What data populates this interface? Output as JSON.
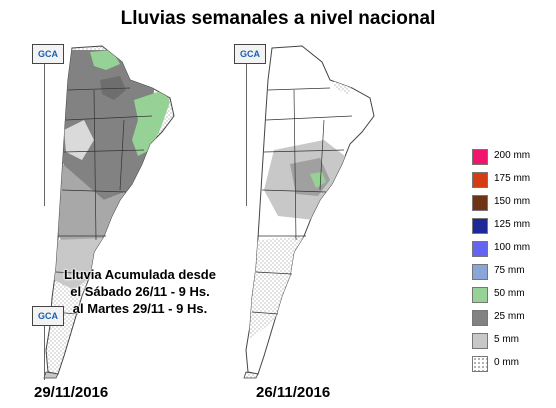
{
  "title": "Lluvias semanales a nivel nacional",
  "logo_text": "GCA",
  "caption": {
    "line1": "Lluvia Acumulada desde",
    "line2": "el Sábado 26/11 - 9 Hs.",
    "line3": "al Martes 29/11 - 9 Hs."
  },
  "maps": [
    {
      "date": "29/11/2016"
    },
    {
      "date": "26/11/2016"
    }
  ],
  "legend": [
    {
      "label": "200 mm",
      "color": "#f0146e"
    },
    {
      "label": "175 mm",
      "color": "#d43c14"
    },
    {
      "label": "150 mm",
      "color": "#6e3214"
    },
    {
      "label": "125 mm",
      "color": "#1e2896"
    },
    {
      "label": "100 mm",
      "color": "#6464f0"
    },
    {
      "label": "75 mm",
      "color": "#8ca5d8"
    },
    {
      "label": "50 mm",
      "color": "#96d296"
    },
    {
      "label": "25 mm",
      "color": "#828282"
    },
    {
      "label": "5 mm",
      "color": "#c8c8c8"
    },
    {
      "label": "0 mm",
      "color": "dotted"
    }
  ]
}
